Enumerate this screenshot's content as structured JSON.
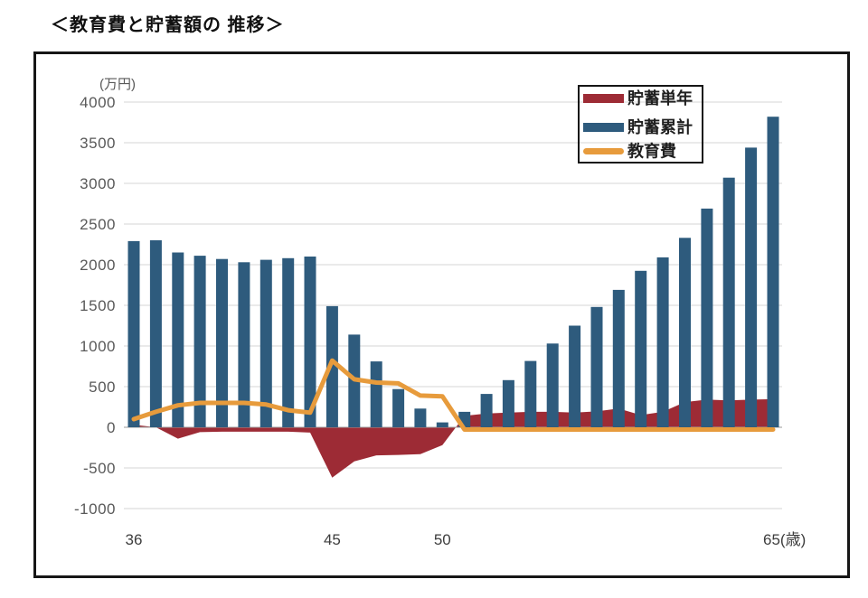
{
  "title": "＜教育費と貯蓄額の 推移＞",
  "y_axis": {
    "unit_label": "(万円)",
    "ticks": [
      4000,
      3500,
      3000,
      2500,
      2000,
      1500,
      1000,
      500,
      0,
      -500,
      -1000
    ]
  },
  "x_axis": {
    "tick_labels": [
      {
        "age": 36,
        "label": "36"
      },
      {
        "age": 45,
        "label": "45"
      },
      {
        "age": 50,
        "label": "50"
      },
      {
        "age": 65,
        "label": "65(歳)"
      }
    ]
  },
  "legend": [
    {
      "key": "savings-annual",
      "label": "貯蓄単年",
      "type": "area",
      "color": "#9D2B35"
    },
    {
      "key": "savings-cumulative",
      "label": "貯蓄累計",
      "type": "bar",
      "color": "#2E5B7D"
    },
    {
      "key": "education-cost",
      "label": "教育費",
      "type": "line",
      "color": "#E79B3C"
    }
  ],
  "colors": {
    "bar_blue": "#2E5B7D",
    "area_red": "#9D2B35",
    "line_orange": "#E79B3C",
    "grid": "#D6D6D6",
    "zero_axis": "#9B9B9B",
    "tick_text": "#595959",
    "x_tick_text": "#3D3D3D",
    "legend_text": "#1F1F1F",
    "frame_border": "#161616"
  },
  "chart_data": {
    "type": "combo",
    "x": [
      36,
      37,
      38,
      39,
      40,
      41,
      42,
      43,
      44,
      45,
      46,
      47,
      48,
      49,
      50,
      51,
      52,
      53,
      54,
      55,
      56,
      57,
      58,
      59,
      60,
      61,
      62,
      63,
      64,
      65
    ],
    "xlabel": "(歳)",
    "ylabel": "(万円)",
    "ylim": [
      -1000,
      4000
    ],
    "ystep": 500,
    "grid": true,
    "legend_position": "top-right",
    "series": [
      {
        "name": "貯蓄単年",
        "type": "area",
        "color": "#9D2B35",
        "values": [
          30,
          0,
          -140,
          -60,
          -55,
          -55,
          -55,
          -55,
          -65,
          -620,
          -420,
          -345,
          -340,
          -330,
          -220,
          140,
          170,
          180,
          190,
          190,
          180,
          195,
          230,
          150,
          190,
          310,
          340,
          330,
          340,
          345
        ]
      },
      {
        "name": "貯蓄累計",
        "type": "bar",
        "color": "#2E5B7D",
        "values": [
          2290,
          2300,
          2150,
          2110,
          2070,
          2030,
          2060,
          2080,
          2100,
          1490,
          1140,
          810,
          470,
          230,
          60,
          190,
          410,
          580,
          815,
          1030,
          1250,
          1480,
          1690,
          1925,
          2090,
          2330,
          2690,
          3070,
          3440,
          3820
        ]
      },
      {
        "name": "教育費",
        "type": "line",
        "color": "#E79B3C",
        "values": [
          100,
          190,
          270,
          300,
          300,
          300,
          280,
          210,
          180,
          820,
          590,
          550,
          540,
          390,
          380,
          0,
          0,
          0,
          0,
          0,
          0,
          0,
          0,
          0,
          0,
          0,
          0,
          0,
          0,
          0
        ]
      }
    ]
  }
}
